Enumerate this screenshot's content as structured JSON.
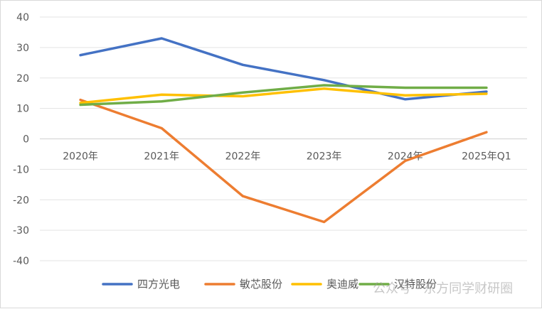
{
  "chart_data": {
    "type": "line",
    "categories": [
      "2020年",
      "2021年",
      "2022年",
      "2023年",
      "2024年",
      "2025年Q1"
    ],
    "ylim": [
      -40,
      40
    ],
    "yticks": [
      40,
      30,
      20,
      10,
      0,
      -10,
      -20,
      -30,
      -40
    ],
    "grid": true,
    "legend_position": "bottom",
    "series": [
      {
        "name": "四方光电",
        "color": "#4472C4",
        "values": [
          27.5,
          33.0,
          24.3,
          19.3,
          13.0,
          15.5
        ]
      },
      {
        "name": "敏芯股份",
        "color": "#ED7D31",
        "values": [
          12.8,
          3.5,
          -18.8,
          -27.3,
          -7.2,
          2.2
        ]
      },
      {
        "name": "奥迪威",
        "color": "#FFC000",
        "values": [
          11.8,
          14.5,
          14.0,
          16.5,
          14.3,
          14.8
        ]
      },
      {
        "name": "汉特股份",
        "color": "#70AD47",
        "values": [
          11.2,
          12.3,
          15.2,
          17.6,
          16.8,
          16.8
        ]
      }
    ]
  },
  "watermark": {
    "text": "公众号 · 东方同学财研圈"
  }
}
